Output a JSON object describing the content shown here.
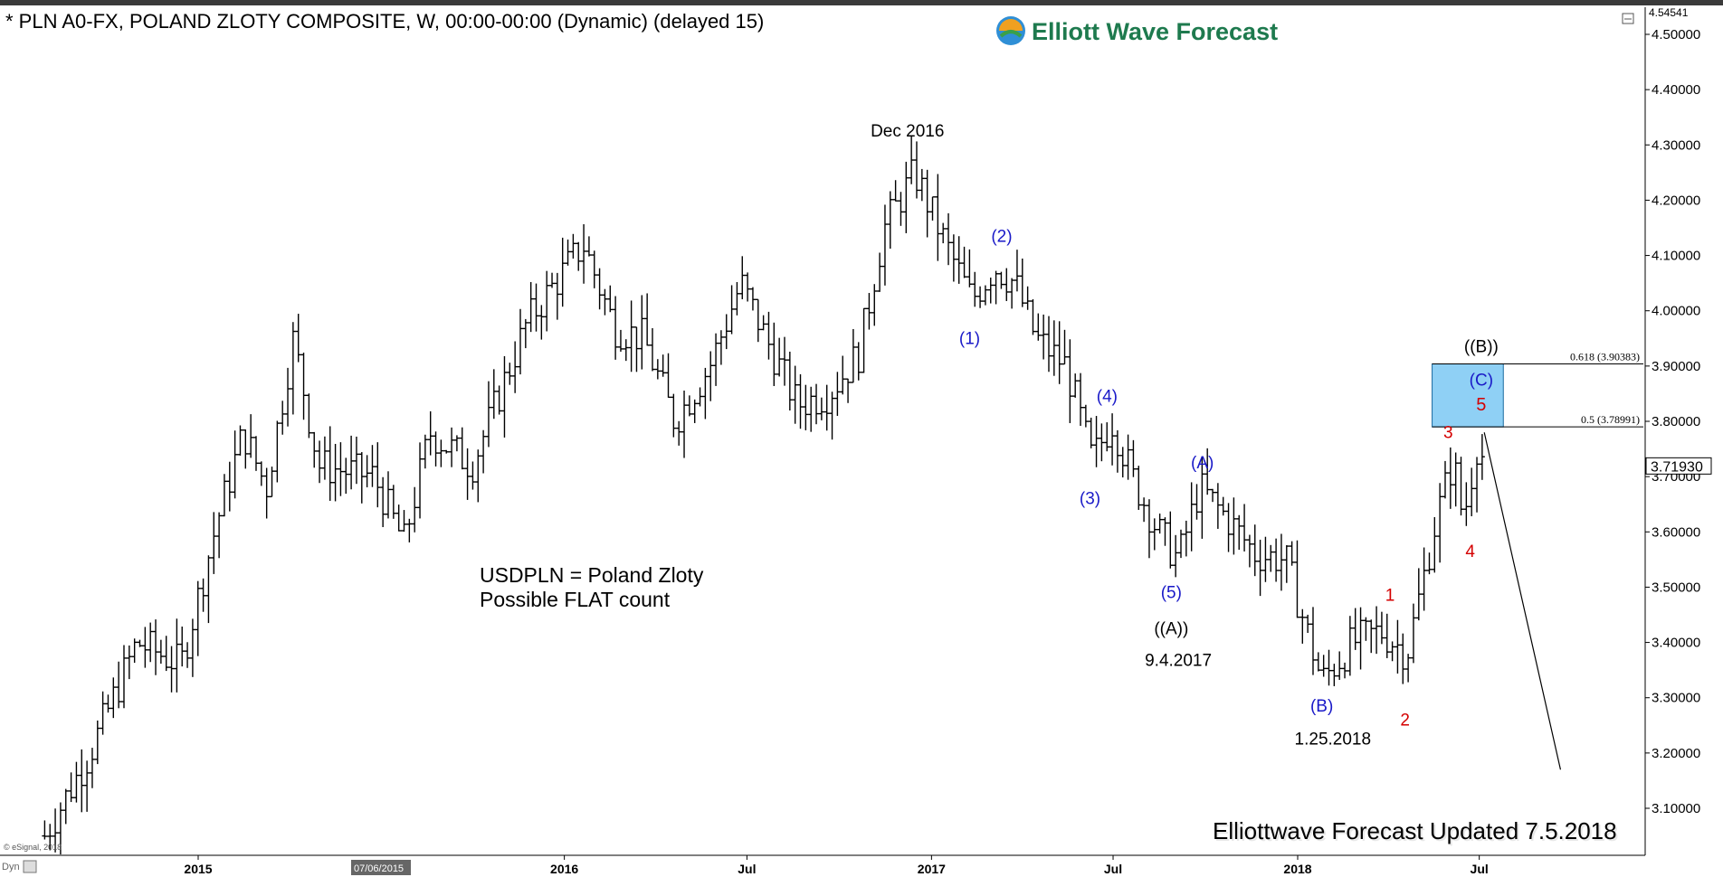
{
  "header": {
    "title": "* PLN A0-FX, POLAND ZLOTY COMPOSITE, W, 00:00-00:00 (Dynamic) (delayed 15)",
    "logo_text": "Elliott Wave Forecast",
    "top_right_price": "4.54541",
    "footer_credit": "Elliottwave Forecast Updated 7.5.2018",
    "copyright": "© eSignal, 2018",
    "corner_label": "Dyn",
    "date_marker": "07/06/2015"
  },
  "colors": {
    "bars": "#000000",
    "wave_blue": "#1a1ac8",
    "wave_red": "#d40000",
    "fib_box": "#8fd0f5",
    "fib_box_border": "#1a6aa0"
  },
  "chart_data": {
    "type": "ohlc",
    "title": "* PLN A0-FX, POLAND ZLOTY COMPOSITE, W, 00:00-00:00 (Dynamic) (delayed 15)",
    "ylim": [
      3.03,
      4.55
    ],
    "y_ticks": [
      "3.10000",
      "3.20000",
      "3.30000",
      "3.40000",
      "3.50000",
      "3.60000",
      "3.70000",
      "3.80000",
      "3.90000",
      "4.00000",
      "4.10000",
      "4.20000",
      "4.30000",
      "4.40000",
      "4.50000"
    ],
    "x_tick_labels": [
      {
        "label": "2015",
        "date": "2015-01-01"
      },
      {
        "label": "2016",
        "date": "2016-01-01"
      },
      {
        "label": "Jul",
        "date": "2016-07-01"
      },
      {
        "label": "2017",
        "date": "2017-01-01"
      },
      {
        "label": "Jul",
        "date": "2017-07-01"
      },
      {
        "label": "2018",
        "date": "2018-01-01"
      },
      {
        "label": "Jul",
        "date": "2018-07-01"
      }
    ],
    "last_price": "3.71930",
    "key_points": [
      {
        "date": "2014-08-01",
        "price": 3.05
      },
      {
        "date": "2014-09-15",
        "price": 3.2
      },
      {
        "date": "2014-11-01",
        "price": 3.4
      },
      {
        "date": "2014-12-15",
        "price": 3.36
      },
      {
        "date": "2015-01-20",
        "price": 3.62
      },
      {
        "date": "2015-02-15",
        "price": 3.78
      },
      {
        "date": "2015-03-10",
        "price": 3.68
      },
      {
        "date": "2015-04-06",
        "price": 3.95
      },
      {
        "date": "2015-05-01",
        "price": 3.72
      },
      {
        "date": "2015-06-25",
        "price": 3.7
      },
      {
        "date": "2015-07-25",
        "price": 3.58
      },
      {
        "date": "2015-08-20",
        "price": 3.78
      },
      {
        "date": "2015-10-01",
        "price": 3.72
      },
      {
        "date": "2015-11-25",
        "price": 3.98
      },
      {
        "date": "2016-01-20",
        "price": 4.12
      },
      {
        "date": "2016-02-20",
        "price": 3.97
      },
      {
        "date": "2016-03-20",
        "price": 3.95
      },
      {
        "date": "2016-04-20",
        "price": 3.8
      },
      {
        "date": "2016-05-25",
        "price": 3.9
      },
      {
        "date": "2016-06-25",
        "price": 4.05
      },
      {
        "date": "2016-07-20",
        "price": 3.95
      },
      {
        "date": "2016-08-20",
        "price": 3.83
      },
      {
        "date": "2016-09-20",
        "price": 3.85
      },
      {
        "date": "2016-10-20",
        "price": 3.92
      },
      {
        "date": "2016-11-15",
        "price": 4.15
      },
      {
        "date": "2016-12-15",
        "price": 4.25
      },
      {
        "date": "2017-01-15",
        "price": 4.12
      },
      {
        "date": "2017-02-10",
        "price": 4.02
      },
      {
        "date": "2017-03-05",
        "price": 4.08
      },
      {
        "date": "2017-03-25",
        "price": 4.05
      },
      {
        "date": "2017-04-15",
        "price": 3.95
      },
      {
        "date": "2017-05-15",
        "price": 3.9
      },
      {
        "date": "2017-06-10",
        "price": 3.73
      },
      {
        "date": "2017-06-30",
        "price": 3.8
      },
      {
        "date": "2017-07-20",
        "price": 3.7
      },
      {
        "date": "2017-08-15",
        "price": 3.6
      },
      {
        "date": "2017-09-04",
        "price": 3.55
      },
      {
        "date": "2017-09-25",
        "price": 3.68
      },
      {
        "date": "2017-10-20",
        "price": 3.63
      },
      {
        "date": "2017-11-20",
        "price": 3.56
      },
      {
        "date": "2017-12-20",
        "price": 3.55
      },
      {
        "date": "2018-01-25",
        "price": 3.33
      },
      {
        "date": "2018-02-25",
        "price": 3.4
      },
      {
        "date": "2018-03-25",
        "price": 3.42
      },
      {
        "date": "2018-04-20",
        "price": 3.38
      },
      {
        "date": "2018-05-20",
        "price": 3.63
      },
      {
        "date": "2018-06-05",
        "price": 3.73
      },
      {
        "date": "2018-06-15",
        "price": 3.62
      },
      {
        "date": "2018-06-30",
        "price": 3.77
      },
      {
        "date": "2018-07-06",
        "price": 3.72
      }
    ],
    "fib_zone": {
      "start_date": "2018-05-15",
      "end_date": "2018-07-25",
      "low": 3.78991,
      "high": 3.90383,
      "low_label": "0.5 (3.78991)",
      "high_label": "0.618 (3.90383)"
    },
    "projection": {
      "from_date": "2018-07-06",
      "from_price": 3.78,
      "to_date": "2018-09-20",
      "to_price": 3.17
    },
    "annotations": [
      {
        "text": "Dec 2016",
        "date": "2016-12-08",
        "price": 4.315,
        "style": "black",
        "size": 19
      },
      {
        "text": "(1)",
        "date": "2017-02-08",
        "price": 3.94,
        "style": "blue",
        "size": 19
      },
      {
        "text": "(2)",
        "date": "2017-03-12",
        "price": 4.125,
        "style": "blue",
        "size": 19
      },
      {
        "text": "(3)",
        "date": "2017-06-08",
        "price": 3.65,
        "style": "blue",
        "size": 19
      },
      {
        "text": "(4)",
        "date": "2017-06-25",
        "price": 3.835,
        "style": "blue",
        "size": 19
      },
      {
        "text": "(5)",
        "date": "2017-08-28",
        "price": 3.48,
        "style": "blue",
        "size": 19
      },
      {
        "text": "((A))",
        "date": "2017-08-28",
        "price": 3.415,
        "style": "black",
        "size": 19
      },
      {
        "text": "9.4.2017",
        "date": "2017-09-04",
        "price": 3.358,
        "style": "black",
        "size": 19
      },
      {
        "text": "(A)",
        "date": "2017-09-28",
        "price": 3.715,
        "style": "blue",
        "size": 19
      },
      {
        "text": "(B)",
        "date": "2018-01-25",
        "price": 3.275,
        "style": "blue",
        "size": 19
      },
      {
        "text": "1.25.2018",
        "date": "2018-02-05",
        "price": 3.215,
        "style": "black",
        "size": 19
      },
      {
        "text": "1",
        "date": "2018-04-03",
        "price": 3.475,
        "style": "red",
        "size": 19
      },
      {
        "text": "2",
        "date": "2018-04-18",
        "price": 3.25,
        "style": "red",
        "size": 19
      },
      {
        "text": "3",
        "date": "2018-05-31",
        "price": 3.77,
        "style": "red",
        "size": 19
      },
      {
        "text": "4",
        "date": "2018-06-22",
        "price": 3.555,
        "style": "red",
        "size": 19
      },
      {
        "text": "5",
        "date": "2018-07-03",
        "price": 3.82,
        "style": "red",
        "size": 20
      },
      {
        "text": "(C)",
        "date": "2018-07-03",
        "price": 3.865,
        "style": "blue",
        "size": 19
      },
      {
        "text": "((B))",
        "date": "2018-07-03",
        "price": 3.925,
        "style": "black",
        "size": 19
      }
    ],
    "note_lines": [
      "USDPLN = Poland Zloty",
      "Possible FLAT count"
    ]
  }
}
